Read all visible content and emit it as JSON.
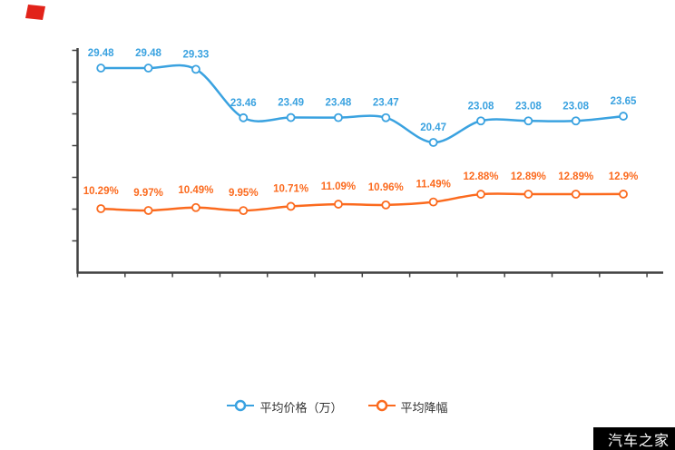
{
  "watermark": "汽车之家",
  "colors": {
    "price_series": "#3aa2e0",
    "discount_series": "#fb6a1e",
    "axis": "#404040",
    "legend_text": "#333333",
    "watermark_bg": "#000000",
    "watermark_text": "#ffffff",
    "flag": "#e2231a",
    "background": "#ffffff"
  },
  "legend": [
    {
      "label": "平均价格（万）",
      "series": "price"
    },
    {
      "label": "平均降幅",
      "series": "discount"
    }
  ],
  "chart_data": {
    "type": "line",
    "x": [
      1,
      2,
      3,
      4,
      5,
      6,
      7,
      8,
      9,
      10,
      11,
      12
    ],
    "x_tick_labels": [],
    "xlabel": "",
    "ylabel": "",
    "grid": false,
    "legend_position": "bottom",
    "series": [
      {
        "name": "平均价格（万）",
        "color": "#3aa2e0",
        "values": [
          29.48,
          29.48,
          29.33,
          23.46,
          23.49,
          23.48,
          23.47,
          20.47,
          23.08,
          23.08,
          23.08,
          23.65
        ],
        "labels": [
          "29.48",
          "29.48",
          "29.33",
          "23.46",
          "23.49",
          "23.48",
          "23.47",
          "20.47",
          "23.08",
          "23.08",
          "23.08",
          "23.65"
        ]
      },
      {
        "name": "平均降幅",
        "color": "#fb6a1e",
        "values": [
          10.29,
          9.97,
          10.49,
          9.95,
          10.71,
          11.09,
          10.96,
          11.49,
          12.88,
          12.89,
          12.89,
          12.9
        ],
        "labels": [
          "10.29%",
          "9.97%",
          "10.49%",
          "9.95%",
          "10.71%",
          "11.09%",
          "10.96%",
          "11.49%",
          "12.88%",
          "12.89%",
          "12.89%",
          "12.9%"
        ]
      }
    ]
  }
}
